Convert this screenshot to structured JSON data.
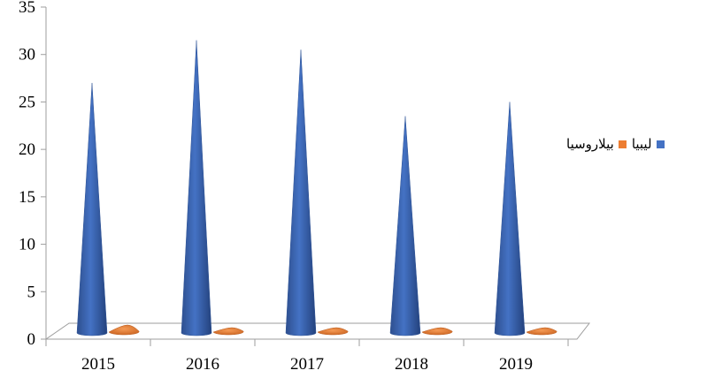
{
  "chart_data": {
    "type": "bar",
    "categories": [
      "2015",
      "2016",
      "2017",
      "2018",
      "2019"
    ],
    "series": [
      {
        "name": "ليبيا",
        "values": [
          27,
          31.5,
          30.5,
          23.5,
          25
        ],
        "color": "#4472C4"
      },
      {
        "name": "بيلاروسيا",
        "values": [
          0.5,
          0.2,
          0.2,
          0.2,
          0.2
        ],
        "color": "#ED7D31"
      }
    ],
    "title": "",
    "xlabel": "",
    "ylabel": "",
    "ylim": [
      0,
      35
    ],
    "yticks": [
      "0",
      "5",
      "10",
      "15",
      "20",
      "25",
      "30",
      "35"
    ],
    "grid": false,
    "legend_position": "right"
  }
}
